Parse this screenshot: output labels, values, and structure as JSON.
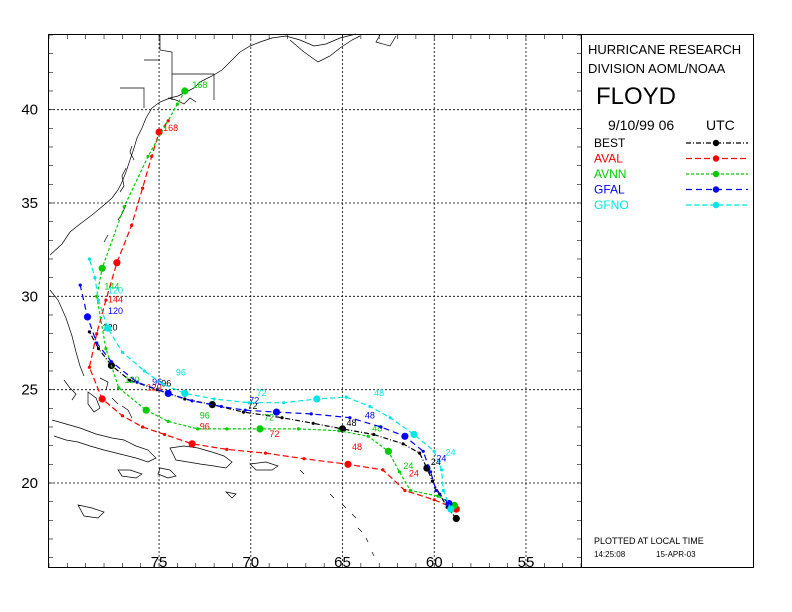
{
  "panel": {
    "org_line1": "HURRICANE RESEARCH",
    "org_line2": "DIVISION AOML/NOAA",
    "storm_name": "FLOYD",
    "date": "9/10/99 06",
    "timezone": "UTC",
    "footer_note": "PLOTTED AT LOCAL TIME",
    "footer_time": "14:25:08",
    "footer_date": "15-APR-03"
  },
  "axes": {
    "lat_labels": [
      "40",
      "35",
      "30",
      "25",
      "20"
    ],
    "lon_labels": [
      "75",
      "70",
      "65",
      "60",
      "55"
    ],
    "lon_range": [
      -81,
      -52
    ],
    "lat_range": [
      15.5,
      44
    ]
  },
  "legend": [
    {
      "name": "BEST",
      "color": "#000000"
    },
    {
      "name": "AVAL",
      "color": "#ff0000"
    },
    {
      "name": "AVNN",
      "color": "#00cc00"
    },
    {
      "name": "GFAL",
      "color": "#0000ff"
    },
    {
      "name": "GFNO",
      "color": "#00e5e5"
    }
  ],
  "tracks": [
    {
      "name": "BEST",
      "color": "#000000",
      "points": [
        [
          -58.8,
          18.1
        ],
        [
          -59.3,
          18.7
        ],
        [
          -59.7,
          19.4
        ],
        [
          -60.1,
          20.1
        ],
        [
          -60.4,
          20.8
        ],
        [
          -60.8,
          21.6
        ],
        [
          -61.7,
          22.1
        ],
        [
          -63.3,
          22.6
        ],
        [
          -65.0,
          22.9
        ],
        [
          -66.6,
          23.2
        ],
        [
          -68.3,
          23.5
        ],
        [
          -70.4,
          23.8
        ],
        [
          -72.1,
          24.2
        ],
        [
          -73.6,
          24.5
        ],
        [
          -75.1,
          25.0
        ],
        [
          -76.6,
          25.5
        ],
        [
          -77.6,
          26.3
        ],
        [
          -78.3,
          27.2
        ],
        [
          -78.8,
          28.1
        ]
      ],
      "labels": [
        {
          "t": "24",
          "lon": -60.4,
          "lat": 20.8
        },
        {
          "t": "48",
          "lon": -65.0,
          "lat": 22.9
        },
        {
          "t": "72",
          "lon": -70.4,
          "lat": 23.8
        },
        {
          "t": "96",
          "lon": -75.1,
          "lat": 25.0
        },
        {
          "t": "120",
          "lon": -78.3,
          "lat": 28.0
        }
      ]
    },
    {
      "name": "AVAL",
      "color": "#ff0000",
      "points": [
        [
          -58.8,
          18.6
        ],
        [
          -60.0,
          19.1
        ],
        [
          -61.6,
          19.6
        ],
        [
          -62.8,
          20.7
        ],
        [
          -64.7,
          21.0
        ],
        [
          -67.1,
          21.3
        ],
        [
          -69.2,
          21.6
        ],
        [
          -71.3,
          21.8
        ],
        [
          -73.2,
          22.1
        ],
        [
          -74.7,
          22.6
        ],
        [
          -75.9,
          23.0
        ],
        [
          -77.0,
          23.6
        ],
        [
          -78.1,
          24.5
        ],
        [
          -78.8,
          26.2
        ],
        [
          -78.4,
          28.0
        ],
        [
          -77.9,
          29.8
        ],
        [
          -77.3,
          31.8
        ],
        [
          -76.5,
          33.8
        ],
        [
          -75.9,
          35.8
        ],
        [
          -75.4,
          37.5
        ],
        [
          -75.0,
          38.8
        ],
        [
          -74.5,
          39.4
        ]
      ],
      "labels": [
        {
          "t": "24",
          "lon": -61.6,
          "lat": 20.2
        },
        {
          "t": "48",
          "lon": -64.7,
          "lat": 21.6
        },
        {
          "t": "72",
          "lon": -69.2,
          "lat": 22.3
        },
        {
          "t": "96",
          "lon": -73.0,
          "lat": 22.7
        },
        {
          "t": "120",
          "lon": -75.9,
          "lat": 24.8
        },
        {
          "t": "144",
          "lon": -78.0,
          "lat": 29.5
        },
        {
          "t": "168",
          "lon": -75.0,
          "lat": 38.7
        }
      ]
    },
    {
      "name": "AVNN",
      "color": "#00cc00",
      "points": [
        [
          -58.9,
          18.8
        ],
        [
          -59.8,
          19.3
        ],
        [
          -61.3,
          19.6
        ],
        [
          -61.9,
          20.6
        ],
        [
          -62.5,
          21.7
        ],
        [
          -63.6,
          22.5
        ],
        [
          -65.2,
          22.8
        ],
        [
          -67.4,
          22.9
        ],
        [
          -69.5,
          22.9
        ],
        [
          -71.3,
          22.9
        ],
        [
          -72.9,
          22.9
        ],
        [
          -74.5,
          23.3
        ],
        [
          -75.7,
          23.9
        ],
        [
          -77.2,
          25.1
        ],
        [
          -77.9,
          27.2
        ],
        [
          -78.4,
          30.0
        ],
        [
          -78.1,
          31.5
        ],
        [
          -76.9,
          34.8
        ],
        [
          -75.6,
          37.5
        ],
        [
          -74.0,
          40.3
        ],
        [
          -73.6,
          41.0
        ]
      ],
      "labels": [
        {
          "t": "24",
          "lon": -61.9,
          "lat": 20.6
        },
        {
          "t": "48",
          "lon": -63.6,
          "lat": 22.6
        },
        {
          "t": "72",
          "lon": -69.5,
          "lat": 23.2
        },
        {
          "t": "96",
          "lon": -73.0,
          "lat": 23.3
        },
        {
          "t": "120",
          "lon": -77.1,
          "lat": 25.2
        },
        {
          "t": "144",
          "lon": -78.2,
          "lat": 30.2
        },
        {
          "t": "168",
          "lon": -73.4,
          "lat": 41.0
        }
      ]
    },
    {
      "name": "GFAL",
      "color": "#0000ff",
      "points": [
        [
          -59.2,
          18.9
        ],
        [
          -59.9,
          19.6
        ],
        [
          -60.2,
          20.6
        ],
        [
          -60.6,
          21.7
        ],
        [
          -61.6,
          22.5
        ],
        [
          -62.9,
          23.0
        ],
        [
          -64.6,
          23.5
        ],
        [
          -66.7,
          23.7
        ],
        [
          -68.6,
          23.8
        ],
        [
          -70.3,
          23.9
        ],
        [
          -71.6,
          24.1
        ],
        [
          -73.2,
          24.4
        ],
        [
          -74.5,
          24.8
        ],
        [
          -76.2,
          25.4
        ],
        [
          -77.6,
          26.5
        ],
        [
          -78.4,
          27.5
        ],
        [
          -78.9,
          28.9
        ],
        [
          -79.3,
          30.6
        ]
      ],
      "labels": [
        {
          "t": "24",
          "lon": -60.1,
          "lat": 21.0
        },
        {
          "t": "48",
          "lon": -64.0,
          "lat": 23.3
        },
        {
          "t": "72",
          "lon": -70.3,
          "lat": 24.1
        },
        {
          "t": "96",
          "lon": -75.6,
          "lat": 25.1
        },
        {
          "t": "120",
          "lon": -78.0,
          "lat": 28.9
        }
      ]
    },
    {
      "name": "GFNO",
      "color": "#00e5e5",
      "points": [
        [
          -59.1,
          18.6
        ],
        [
          -59.5,
          19.6
        ],
        [
          -59.6,
          20.7
        ],
        [
          -60.0,
          21.7
        ],
        [
          -61.1,
          22.6
        ],
        [
          -62.4,
          23.5
        ],
        [
          -63.5,
          24.1
        ],
        [
          -64.8,
          24.6
        ],
        [
          -66.4,
          24.5
        ],
        [
          -68.2,
          24.3
        ],
        [
          -70.1,
          24.3
        ],
        [
          -72.0,
          24.5
        ],
        [
          -73.6,
          24.8
        ],
        [
          -74.8,
          25.3
        ],
        [
          -75.8,
          26.0
        ],
        [
          -77.0,
          27.0
        ],
        [
          -77.8,
          28.3
        ],
        [
          -78.3,
          29.8
        ],
        [
          -78.5,
          31.0
        ],
        [
          -78.8,
          32.0
        ]
      ],
      "labels": [
        {
          "t": "24",
          "lon": -59.6,
          "lat": 21.3
        },
        {
          "t": "48",
          "lon": -63.5,
          "lat": 24.5
        },
        {
          "t": "72",
          "lon": -69.9,
          "lat": 24.5
        },
        {
          "t": "96",
          "lon": -74.3,
          "lat": 25.6
        },
        {
          "t": "120",
          "lon": -78.0,
          "lat": 30.0
        }
      ]
    }
  ]
}
